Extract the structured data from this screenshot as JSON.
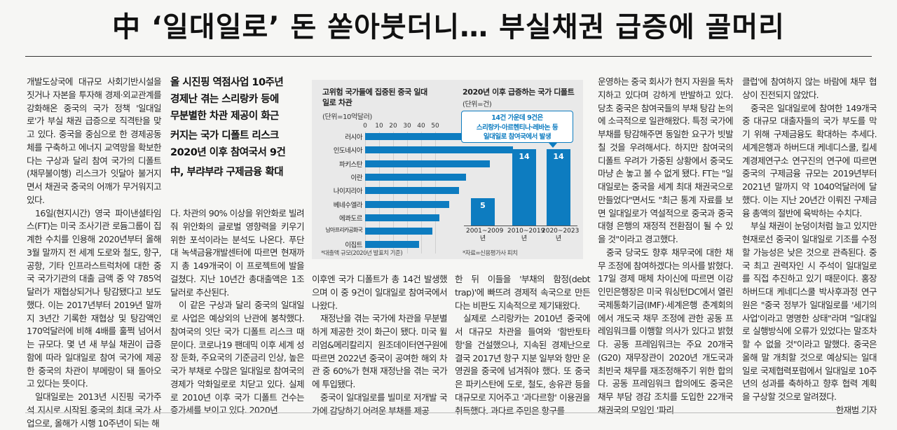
{
  "headline": "中 ‘일대일로’ 돈 쏟아붓더니… 부실채권 급증에 골머리",
  "subheads": [
    "올 시진핑 역점사업 10주년",
    "경제난 겪는 스리랑카 등에",
    "무분별한 차관 제공이 화근",
    "커지는 국가 디폴트 리스크",
    "2020년 이후 참여국서 9건",
    "中, 부랴부랴 구제금융 확대"
  ],
  "columns": {
    "c1": [
      "개발도상국에 대규모 사회기반시설을 짓거나 자본을 투자해 경제·외교관계를 강화해온 중국의 국가 정책 '일대일로'가 부실 채권 급증으로 직격탄을 맞고 있다. 중국을 중심으로 한 경제공동체를 구축하고 에너지 교역망을 확보한다는 구상과 달리 참여 국가의 디폴트(채무불이행) 리스크가 잇달아 불거지면서 채권국 중국의 어깨가 무거워지고 있다.",
      "16일(현지시간) 영국 파이낸셜타임스(FT)는 미국 조사기관 로듐그룹이 집계한 수치를 인용해 2020년부터 올해 3월 말까지 전 세계 도로와 철도, 항구, 공항, 기타 인프라스트럭처에 대한 중국 국가기관의 대출 금액 중 약 785억달러가 재협상되거나 탕감됐다고 보도했다. 이는 2017년부터 2019년 말까지 3년간 기록한 재협상 및 탕감액인 170억달러에 비해 4배를 훌쩍 넘어서는 규모다. 몇 년 새 부실 채권이 급증함에 따라 일대일로 참여 국가에 제공한 중국의 차관이 부메랑이 돼 돌아오고 있다는 뜻이다.",
      "일대일로는 2013년 시진핑 국가주석 지시로 시작된 중국의 최대 국가 사업으로, 올해가 시행 10주년이 되는 해"
    ],
    "c2": [
      "다. 차관의 90% 이상을 위안화로 빌려줘 위안화의 글로벌 영향력을 키우기 위한 포석이라는 분석도 나온다. 푸단대 녹색금융개발센터에 따르면 현재까지 총 149개국이 이 프로젝트에 발을 걸쳤다. 지난 10년간 총대출액은 1조달러로 추산된다.",
      "이 같은 구상과 달리 중국의 일대일로 사업은 예상외의 난관에 봉착했다. 참여국의 잇단 국가 디폴트 리스크 때문이다. 코로나19 팬데믹 이후 세계 성장 둔화, 주요국의 기준금리 인상, 높은 국가 부채로 수많은 일대일로 참여국의 경제가 악화일로로 치닫고 있다. 실제로 2010년 이후 국가 디폴트 건수는 증가세를 보이고 있다. 2020년"
    ],
    "c3": [
      "이후엔 국가 디폴트가 총 14건 발생했으며 이 중 9건이 일대일로 참여국에서 나왔다.",
      "재정난을 겪는 국가에 차관을 무분별하게 제공한 것이 화근이 됐다. 미국 윌리엄&메리칼리지 원조데이터연구원에 따르면 2022년 중국이 공여한 해외 차관 중 60%가 현재 재정난을 겪는 국가에 투입됐다.",
      "중국이 일대일로를 빌미로 저개발 국가에 감당하기 어려운 부채를 제공"
    ],
    "c4": [
      "한 뒤 이들을 '부채의 함정(debt trap)'에 빠뜨려 경제적 속국으로 만든다는 비판도 지속적으로 제기돼왔다.",
      "실제로 스리랑카는 2010년 중국에서 대규모 차관을 들여와 '함반토타항'을 건설했으나, 지속된 경제난으로 결국 2017년 항구 지분 일부와 항만 운영권을 중국에 넘겨줘야 했다. 또 중국은 파키스탄에 도로, 철도, 송유관 등을 대규모로 지어주고 '과다르항' 이용권을 취득했다. 과다르 주민은 항구를"
    ],
    "c5": [
      "운영하는 중국 회사가 현지 자원을 독차지하고 있다며 강하게 반발하고 있다. 당초 중국은 참여국들의 부채 탕감 논의에 소극적으로 일관해왔다. 특정 국가에 부채를 탕감해주면 동일한 요구가 빗발칠 것을 우려해서다. 하지만 참여국의 디폴트 우려가 가중된 상황에서 중국도 마냥 손 놓고 볼 수 없게 됐다. FT는 \"일대일로는 중국을 세계 최대 채권국으로 만들었다\"면서도 \"최근 통계 자료를 보면 일대일로가 역설적으로 중국과 중국 대형 은행의 재정적 전환점이 될 수 있을 것\"이라고 경고했다.",
      "중국 당국도 향후 채무국에 대한 채무 조정에 참여하겠다는 의사를 밝혔다. 17일 경제 매체 차이신에 따르면 이강 인민은행장은 미국 워싱턴DC에서 열린 국제통화기금(IMF)·세계은행 춘계회의에서 개도국 채무 조정에 관한 공동 프레임워크를 이행할 의사가 있다고 밝혔다. 공동 프레임워크는 주요 20개국(G20) 재무장관이 2020년 개도국과 최빈국 채무를 재조정해주기 위한 합의다. 공동 프레임워크 합의에도 중국은 채무 부담 경감 조치를 도입한 22개국 채권국의 모임인 '파리"
    ],
    "c6": [
      "클럽'에 참여하지 않는 바람에 채무 협상이 진전되지 않았다.",
      "중국은 일대일로에 참여한 149개국 중 대규모 대출자들의 국가 부도를 막기 위해 구제금융도 확대하는 추세다. 세계은행과 하버드대 케네디스쿨, 킬세계경제연구소 연구진의 연구에 따르면 중국의 구제금융 규모는 2019년부터 2021년 말까지 약 1040억달러에 달했다. 이는 지난 20년간 이뤄진 구제금융 총액의 절반에 육박하는 수치다.",
      "부실 채권이 눈덩이처럼 늘고 있지만 현재로선 중국이 일대일로 기조를 수정할 가능성은 낮은 것으로 관측된다. 중국 최고 권력자인 시 주석이 일대일로를 직접 추진하고 있기 때문이다. 홍장 하버드대 케네디스쿨 박사후과정 연구원은 \"중국 정부가 일대일로를 '세기의 사업'이라고 명명한 상태\"라며 \"일대일로 실행방식에 오류가 있었다는 말조차 할 수 없을 것\"이라고 말했다. 중국은 올해 말 개최할 것으로 예상되는 일대일로 국제협력포럼에서 일대일로 10주년의 성과를 축하하고 향후 협력 계획을 구상할 것으로 알려졌다."
    ],
    "byline": "한재범 기자"
  },
  "chart_data": [
    {
      "type": "bar",
      "orientation": "horizontal",
      "title": "고위험 국가들에 집중된 중국 일대일로 차관",
      "unit": "(단위=10억달러)",
      "categories": [
        "러시아",
        "인도네시아",
        "파키스탄",
        "이란",
        "나이지리아",
        "베네수엘라",
        "에콰도르",
        "남아프리카공화국",
        "이집트"
      ],
      "values": [
        52,
        44,
        37,
        30,
        28,
        25,
        22,
        20,
        16
      ],
      "ticks": [
        "0",
        "10",
        "20",
        "30",
        "40",
        "50"
      ],
      "xlim": [
        0,
        55
      ],
      "note": "*대출액 규모(2020년 발표치 기준)"
    },
    {
      "type": "bar",
      "orientation": "vertical",
      "title": "2020년 이후 급증하는 국가 디폴트",
      "unit": "(단위=건)",
      "categories": [
        "2001~2009년",
        "2010~2019년",
        "2020~2023년"
      ],
      "values": [
        5,
        14,
        14
      ],
      "ylim": [
        0,
        18
      ],
      "annotation": [
        "14건 가운데 9건은",
        "스리랑카·아르헨티나·레바논 등",
        "일대일로 참여국에서 발생"
      ],
      "note": "*자료=신용평가사 피치"
    }
  ],
  "colors": {
    "bar": "#0d7cc0",
    "graphic_bg": "#e9e9e9"
  }
}
